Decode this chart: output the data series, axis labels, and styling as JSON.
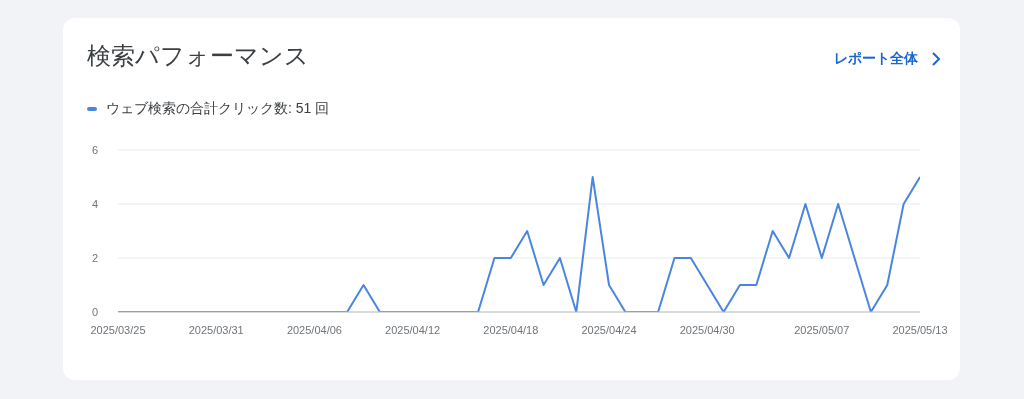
{
  "chart_data": {
    "type": "line",
    "title": "検索パフォーマンス",
    "annotations": [
      "レポート全体"
    ],
    "x": [
      "2025-03-25",
      "2025-03-26",
      "2025-03-27",
      "2025-03-28",
      "2025-03-29",
      "2025-03-30",
      "2025-03-31",
      "2025-04-01",
      "2025-04-02",
      "2025-04-03",
      "2025-04-04",
      "2025-04-05",
      "2025-04-06",
      "2025-04-07",
      "2025-04-08",
      "2025-04-09",
      "2025-04-10",
      "2025-04-11",
      "2025-04-12",
      "2025-04-13",
      "2025-04-14",
      "2025-04-15",
      "2025-04-16",
      "2025-04-17",
      "2025-04-18",
      "2025-04-19",
      "2025-04-20",
      "2025-04-21",
      "2025-04-22",
      "2025-04-23",
      "2025-04-24",
      "2025-04-25",
      "2025-04-26",
      "2025-04-27",
      "2025-04-28",
      "2025-04-29",
      "2025-04-30",
      "2025-05-01",
      "2025-05-02",
      "2025-05-03",
      "2025-05-04",
      "2025-05-05",
      "2025-05-06",
      "2025-05-07",
      "2025-05-08",
      "2025-05-09",
      "2025-05-10",
      "2025-05-11",
      "2025-05-12",
      "2025-05-13"
    ],
    "series": [
      {
        "name": "ウェブ検索の合計クリック数: 51 回",
        "color": "#4a86e0",
        "values": [
          0,
          0,
          0,
          0,
          0,
          0,
          0,
          0,
          0,
          0,
          0,
          0,
          0,
          0,
          0,
          1,
          0,
          0,
          0,
          0,
          0,
          0,
          0,
          2,
          2,
          3,
          1,
          2,
          0,
          5,
          1,
          0,
          0,
          0,
          2,
          2,
          1,
          0,
          1,
          1,
          3,
          2,
          4,
          2,
          4,
          2,
          0,
          1,
          4,
          5
        ]
      }
    ],
    "xlim": [
      "2025-03-25",
      "2025-05-13"
    ],
    "xticks": [
      {
        "value": "2025-03-25",
        "label": "2025/03/25"
      },
      {
        "value": "2025-03-31",
        "label": "2025/03/31"
      },
      {
        "value": "2025-04-06",
        "label": "2025/04/06"
      },
      {
        "value": "2025-04-12",
        "label": "2025/04/12"
      },
      {
        "value": "2025-04-18",
        "label": "2025/04/18"
      },
      {
        "value": "2025-04-24",
        "label": "2025/04/24"
      },
      {
        "value": "2025-04-30",
        "label": "2025/04/30"
      },
      {
        "value": "2025-05-07",
        "label": "2025/05/07"
      },
      {
        "value": "2025-05-13",
        "label": "2025/05/13"
      }
    ],
    "ylim": [
      0,
      6
    ],
    "yticks": [
      0,
      2,
      4,
      6
    ],
    "grid": "y",
    "legend": "top left",
    "marker": "none",
    "line_style": "solid"
  }
}
